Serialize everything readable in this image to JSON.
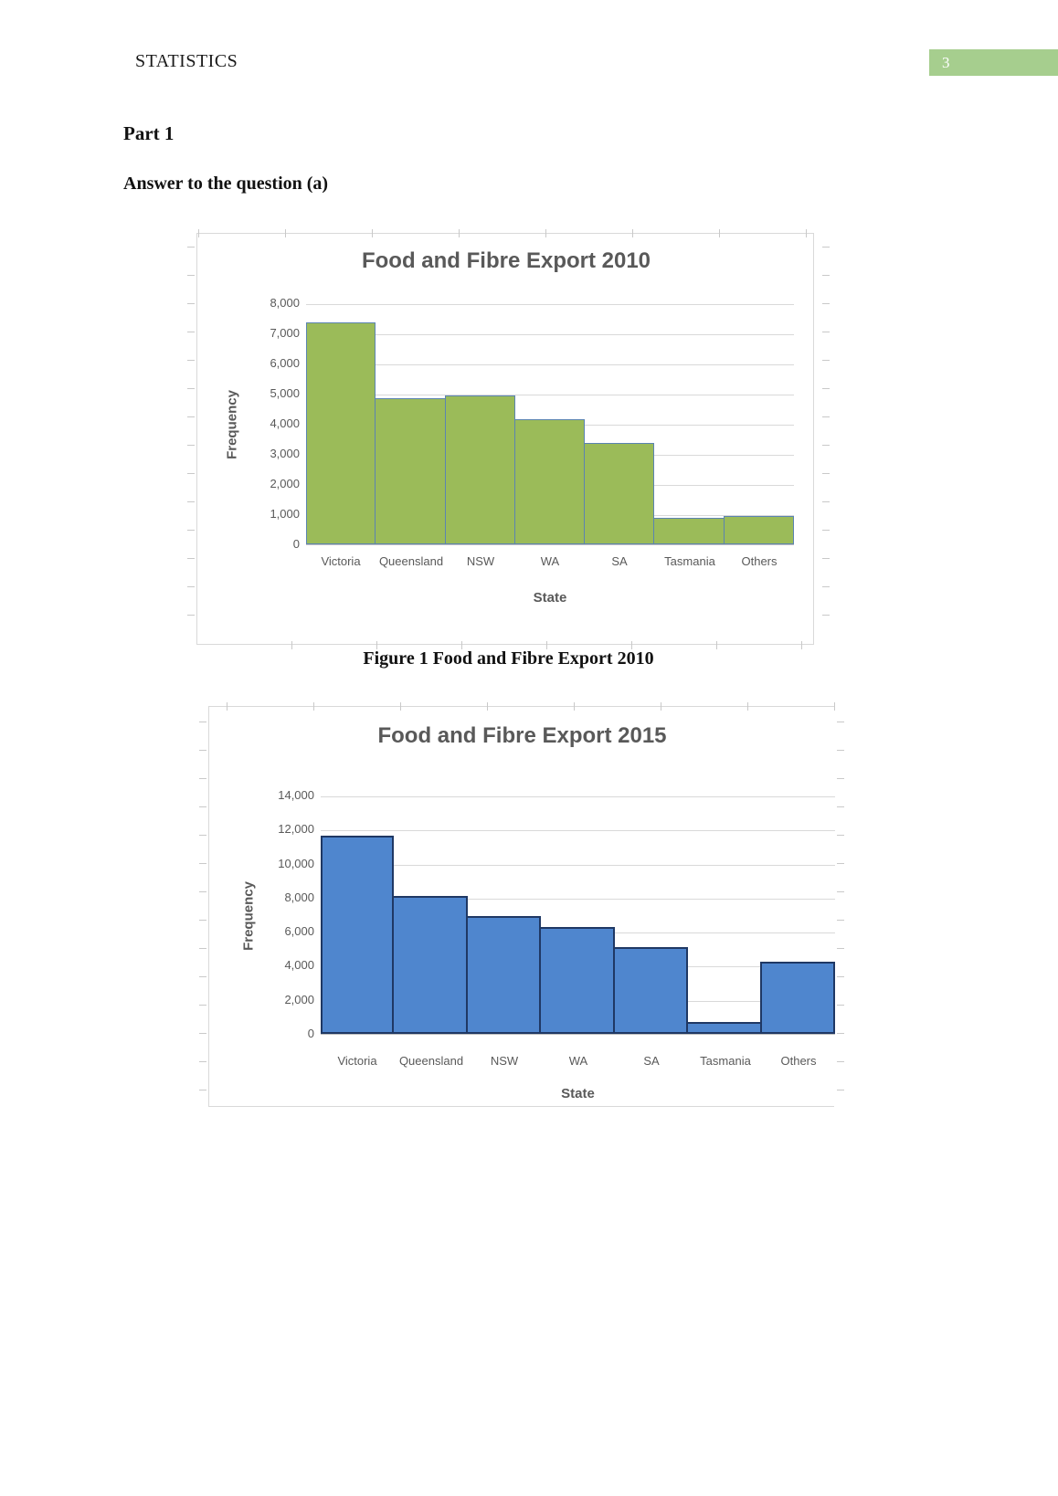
{
  "header": {
    "running_head": "STATISTICS",
    "page_number": "3"
  },
  "document": {
    "part_heading": "Part 1",
    "answer_heading": "Answer to the question (a)",
    "figure_caption": "Figure 1 Food and Fibre Export 2010"
  },
  "colors": {
    "page_number_box": "#A6CE8E",
    "chart_text": "#595959",
    "gridline": "#D9D9D9",
    "axis_line": "#BFBFBF",
    "frame_border": "#D9D9D9",
    "ruler": "#C9C9C9",
    "bar_2010_fill": "#9BBB59",
    "bar_2010_border": "#5B84B1",
    "bar_2015_fill": "#4F86CE",
    "bar_2015_border": "#1F3864"
  },
  "chart_data": [
    {
      "type": "bar",
      "title": "Food and Fibre Export 2010",
      "categories": [
        "Victoria",
        "Queensland",
        "NSW",
        "WA",
        "SA",
        "Tasmania",
        "Others"
      ],
      "values": [
        7350,
        4850,
        4950,
        4150,
        3350,
        875,
        950
      ],
      "xlabel": "State",
      "ylabel": "Frequency",
      "ylim": [
        0,
        8000
      ],
      "ytick_step": 1000,
      "ytick_labels": [
        "8,000",
        "7,000",
        "6,000",
        "5,000",
        "4,000",
        "3,000",
        "2,000",
        "1,000",
        "0"
      ],
      "grid": true,
      "legend": "none",
      "bar_fill": "#9BBB59",
      "bar_border": "#5B84B1"
    },
    {
      "type": "bar",
      "title": "Food and Fibre Export 2015",
      "categories": [
        "Victoria",
        "Queensland",
        "NSW",
        "WA",
        "SA",
        "Tasmania",
        "Others"
      ],
      "values": [
        11650,
        8100,
        6900,
        6300,
        5100,
        675,
        4250
      ],
      "xlabel": "State",
      "ylabel": "Frequency",
      "ylim": [
        0,
        14000
      ],
      "ytick_step": 2000,
      "ytick_labels": [
        "14,000",
        "12,000",
        "10,000",
        "8,000",
        "6,000",
        "4,000",
        "2,000",
        "0"
      ],
      "grid": true,
      "legend": "none",
      "bar_fill": "#4F86CE",
      "bar_border": "#1F3864"
    }
  ]
}
